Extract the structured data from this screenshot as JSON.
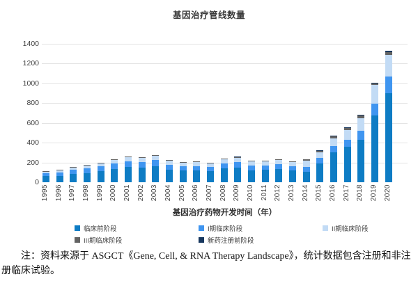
{
  "chart_data": {
    "type": "bar",
    "stacked": true,
    "title": "基因治疗管线数量",
    "xlabel": "基因治疗药物开发时间（年）",
    "ylabel": "",
    "ylim": [
      0,
      1400
    ],
    "ytick_step": 200,
    "grid": true,
    "legend_position": "bottom",
    "categories": [
      "1995",
      "1996",
      "1997",
      "1998",
      "1999",
      "2000",
      "2001",
      "2002",
      "2003",
      "2004",
      "2005",
      "2006",
      "2007",
      "2008",
      "2009",
      "2010",
      "2011",
      "2012",
      "2013",
      "2014",
      "2015",
      "2016",
      "2017",
      "2018",
      "2019",
      "2020"
    ],
    "series": [
      {
        "name": "临床前阶段",
        "color": "#0e7cc4",
        "values": [
          60,
          65,
          85,
          95,
          110,
          135,
          155,
          150,
          165,
          130,
          118,
          120,
          113,
          140,
          150,
          123,
          124,
          135,
          120,
          108,
          190,
          305,
          360,
          430,
          675,
          900
        ]
      },
      {
        "name": "I期临床阶段",
        "color": "#3f95f0",
        "values": [
          30,
          35,
          40,
          45,
          50,
          55,
          58,
          57,
          60,
          48,
          43,
          44,
          42,
          48,
          52,
          43,
          43,
          46,
          42,
          50,
          55,
          60,
          70,
          90,
          120,
          170
        ]
      },
      {
        "name": "II期临床阶段",
        "color": "#c2dbf5",
        "values": [
          13,
          18,
          25,
          27,
          30,
          38,
          42,
          41,
          45,
          38,
          37,
          37,
          38,
          43,
          45,
          42,
          42,
          45,
          40,
          60,
          57,
          77,
          98,
          125,
          188,
          220
        ]
      },
      {
        "name": "III期临床阶段",
        "color": "#636363",
        "values": [
          2,
          2,
          3,
          3,
          3,
          4,
          5,
          5,
          5,
          6,
          7,
          7,
          7,
          7,
          8,
          8,
          8,
          9,
          9,
          12,
          15,
          22,
          24,
          30,
          14,
          28
        ]
      },
      {
        "name": "新药注册前阶段",
        "color": "#17375e",
        "values": [
          0,
          0,
          0,
          0,
          0,
          0,
          0,
          0,
          0,
          0,
          0,
          0,
          0,
          0,
          1,
          0,
          0,
          0,
          0,
          0,
          1,
          2,
          3,
          5,
          3,
          12
        ]
      }
    ]
  },
  "note": "注：资料来源于 ASGCT《Gene, Cell, & RNA Therapy Landscape》，统计数据包含注册和非注册临床试验。"
}
